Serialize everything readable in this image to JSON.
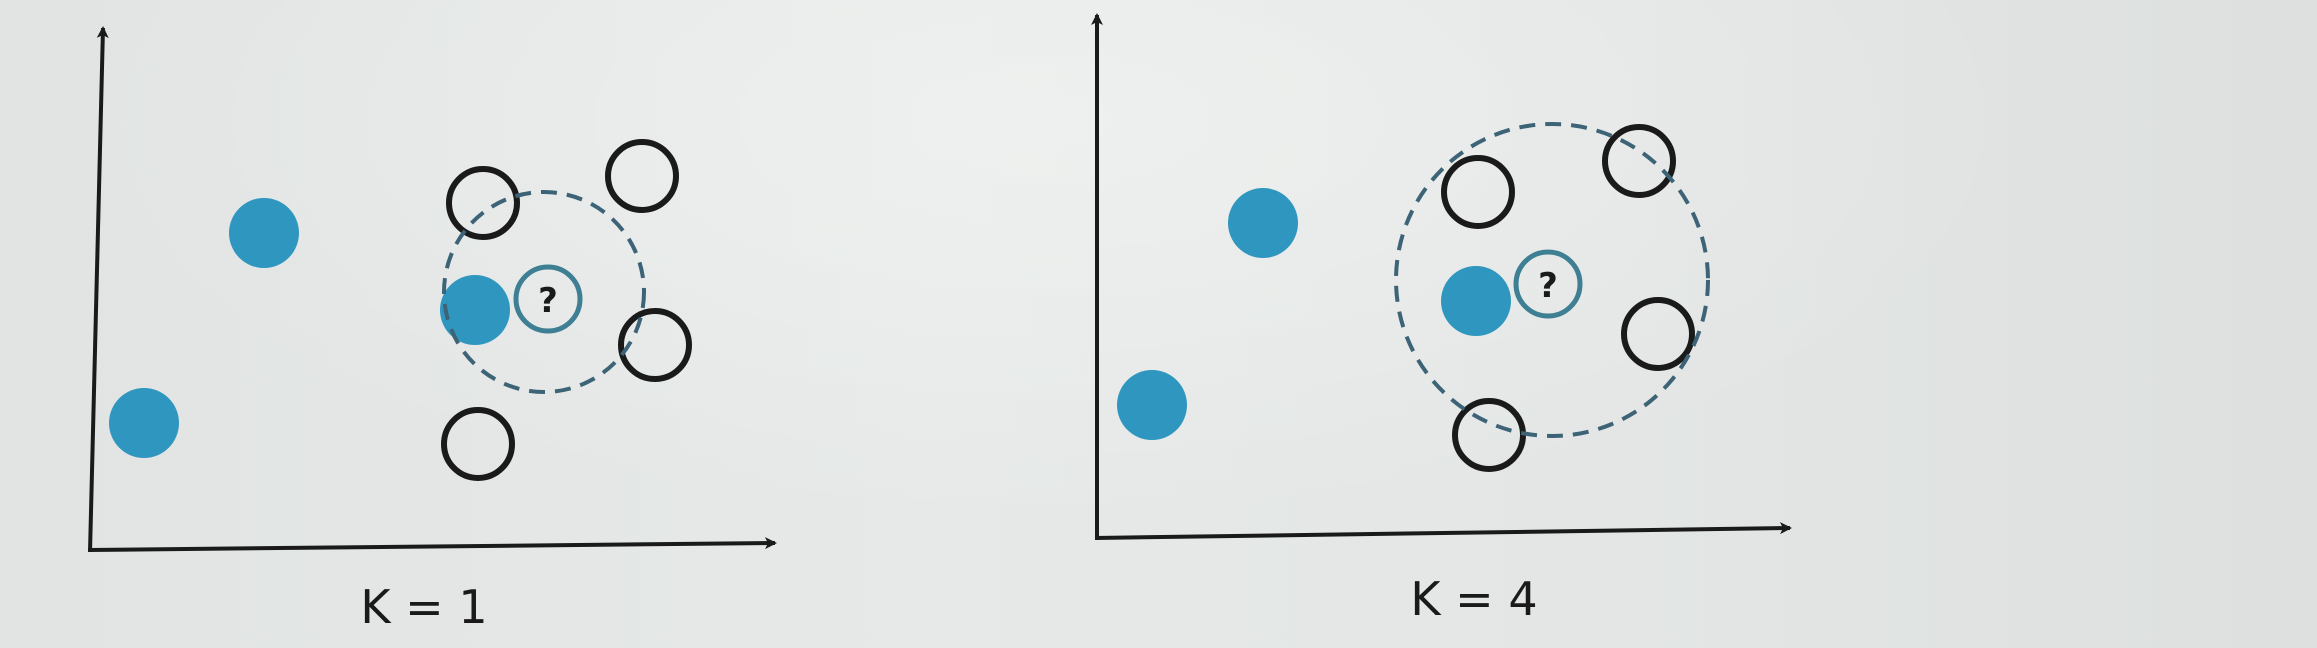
{
  "colors": {
    "filled_point": "#2f96bf",
    "open_point_stroke": "#1a1a1a",
    "query_stroke": "#3e7f94",
    "radius_dash": "#3d6377",
    "axis": "#1a1a1a"
  },
  "panels": [
    {
      "id": "k1",
      "label": "K = 1",
      "query_symbol": "?"
    },
    {
      "id": "k4",
      "label": "K = 4",
      "query_symbol": "?"
    }
  ]
}
